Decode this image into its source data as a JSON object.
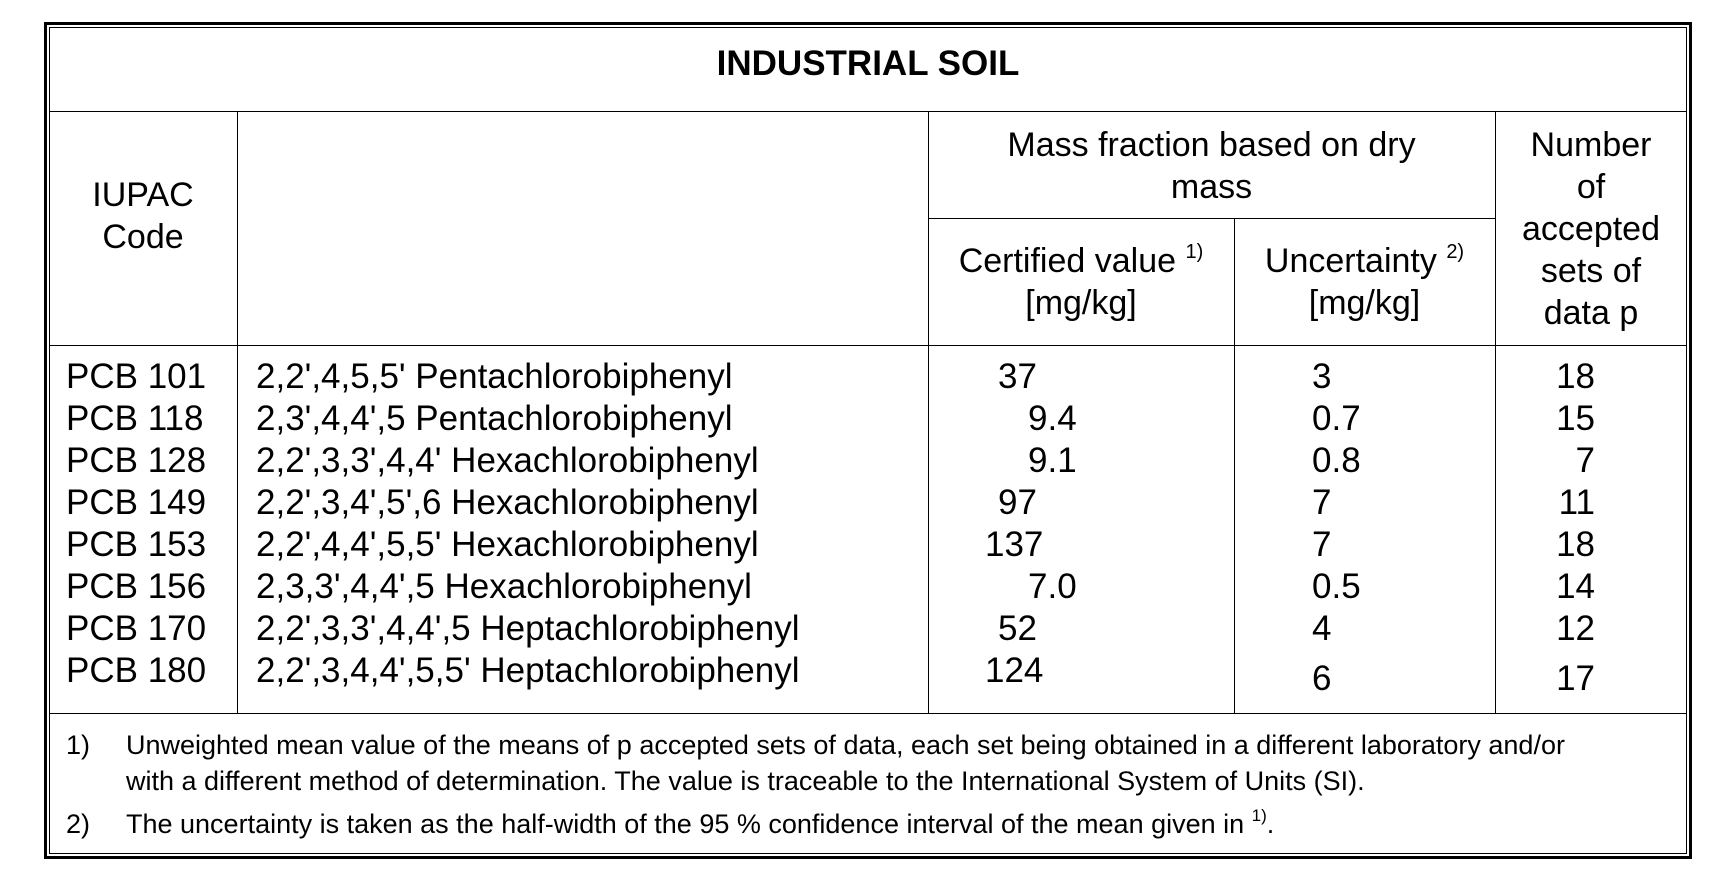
{
  "title": "INDUSTRIAL SOIL",
  "headers": {
    "iupac_line1": "IUPAC",
    "iupac_line2": "Code",
    "mass_fraction_line1": "Mass fraction based on dry",
    "mass_fraction_line2": "mass",
    "certified_line1": "Certified value",
    "certified_ref": "1)",
    "certified_unit": "[mg/kg]",
    "uncertainty_line1": "Uncertainty",
    "uncertainty_ref": "2)",
    "uncertainty_unit": "[mg/kg]",
    "number_line1": "Number",
    "number_line2": "of",
    "number_line3": "accepted",
    "number_line4": "sets of",
    "number_line5": "data p"
  },
  "rows": [
    {
      "code": "PCB 101",
      "name": "2,2',4,5,5' Pentachlorobiphenyl",
      "certified": "37",
      "uncertainty": "3",
      "count": "18"
    },
    {
      "code": "PCB 118",
      "name": "2,3',4,4',5 Pentachlorobiphenyl",
      "certified": "9.4",
      "uncertainty": "0.7",
      "count": "15"
    },
    {
      "code": "PCB 128",
      "name": "2,2',3,3',4,4' Hexachlorobiphenyl",
      "certified": "9.1",
      "uncertainty": "0.8",
      "count": "7"
    },
    {
      "code": "PCB 149",
      "name": "2,2',3,4',5',6 Hexachlorobiphenyl",
      "certified": "97",
      "uncertainty": "7",
      "count": "11"
    },
    {
      "code": "PCB 153",
      "name": "2,2',4,4',5,5' Hexachlorobiphenyl",
      "certified": "137",
      "uncertainty": "7",
      "count": "18"
    },
    {
      "code": "PCB 156",
      "name": "2,3,3',4,4',5 Hexachlorobiphenyl",
      "certified": "7.0",
      "uncertainty": "0.5",
      "count": "14"
    },
    {
      "code": "PCB 170",
      "name": "2,2',3,3',4,4',5 Heptachlorobiphenyl",
      "certified": "52",
      "uncertainty": "4",
      "count": "12"
    },
    {
      "code": "PCB 180",
      "name": "2,2',3,4,4',5,5' Heptachlorobiphenyl",
      "certified": "124",
      "uncertainty": "6",
      "count": "17"
    }
  ],
  "footnotes": {
    "note1_marker": "1)",
    "note1_line1": "Unweighted mean value of the means of p accepted sets of data, each set being obtained in a different laboratory and/or",
    "note1_line2": "with a different method of determination. The value is traceable to the International System of Units (SI).",
    "note2_marker": "2)",
    "note2_text": "The uncertainty is taken as the half-width of the 95 % confidence interval of the mean given in",
    "note2_ref": "1)",
    "note2_end": "."
  }
}
